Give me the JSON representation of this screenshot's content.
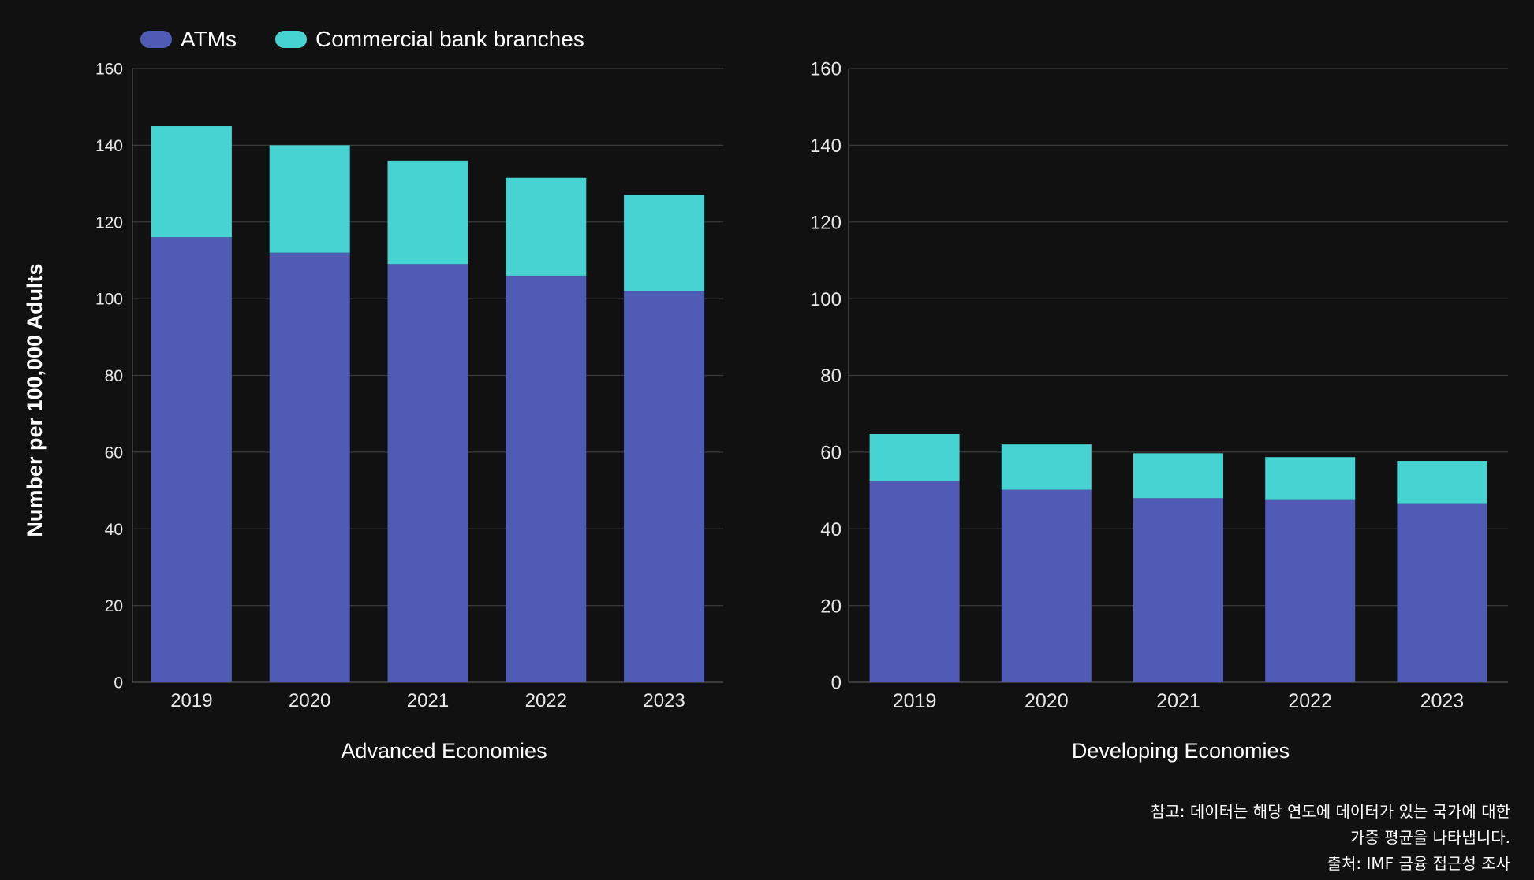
{
  "chart_data": {
    "type": "bar",
    "stacked": true,
    "legend": {
      "placement": "top-left",
      "items": [
        {
          "name": "ATMs",
          "color": "#4f5bb5"
        },
        {
          "name": "Commercial bank branches",
          "color": "#48d3d3"
        }
      ]
    },
    "ylabel": "Number per 100,000 Adults",
    "grid": true,
    "panels": [
      {
        "xlabel": "Advanced Economies",
        "categories": [
          "2019",
          "2020",
          "2021",
          "2022",
          "2023"
        ],
        "ylim": [
          0,
          160
        ],
        "yticks": [
          "0",
          "20",
          "40",
          "60",
          "80",
          "100",
          "120",
          "140",
          "160"
        ],
        "series": [
          {
            "name": "ATMs",
            "values": [
              116,
              112,
              109,
              106,
              102
            ]
          },
          {
            "name": "Commercial bank branches",
            "values": [
              29,
              28,
              27,
              25.5,
              25
            ]
          }
        ]
      },
      {
        "xlabel": "Developing Economies",
        "categories": [
          "2019",
          "2020",
          "2021",
          "2022",
          "2023"
        ],
        "ylim": [
          0,
          160
        ],
        "yticks": [
          "0",
          "20",
          "40",
          "60",
          "80",
          "100",
          "120",
          "140",
          "160"
        ],
        "series": [
          {
            "name": "ATMs",
            "values": [
              52.5,
              50.2,
              48,
              47.5,
              46.5
            ]
          },
          {
            "name": "Commercial bank branches",
            "values": [
              12.2,
              11.8,
              11.7,
              11.2,
              11.2
            ]
          }
        ]
      }
    ]
  },
  "notes": {
    "line1": "참고: 데이터는 해당 연도에 데이터가 있는 국가에 대한",
    "line2": "가중 평균을 나타냅니다.",
    "source": "출처: IMF 금융 접근성 조사"
  }
}
